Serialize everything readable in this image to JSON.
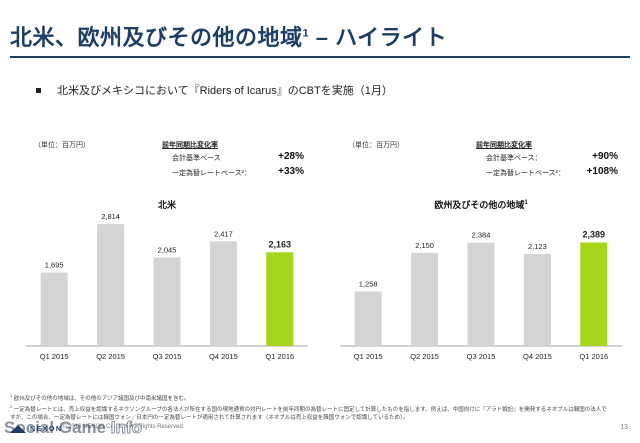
{
  "header": {
    "title": "北米、欧州及びその他の地域",
    "title_sup": "1",
    "title_suffix": "– ハイライト"
  },
  "bullet": {
    "text": "北米及びメキシコにおいて『Riders of Icarus』のCBTを実施（1月）"
  },
  "panels": [
    {
      "unit": "（単位：百万円）",
      "yoy_header": "前年同期比変化率",
      "yoy_rows": [
        {
          "label": "会計基準ベース",
          "value": "+28%"
        },
        {
          "label": "一定為替レートベース²：",
          "value": "+33%"
        }
      ],
      "chart_title": "北米",
      "chart_title_sup": ""
    },
    {
      "unit": "（単位：百万円）",
      "yoy_header": "前年同期比変化率",
      "yoy_rows": [
        {
          "label": "会計基準ベース：",
          "value": "+90%"
        },
        {
          "label": "一定為替レートベース²：",
          "value": "+108%"
        }
      ],
      "chart_title": "欧州及びその他の地域",
      "chart_title_sup": "1"
    }
  ],
  "chart_data": [
    {
      "type": "bar",
      "title": "北米",
      "categories": [
        "Q1 2015",
        "Q2 2015",
        "Q3 2015",
        "Q4 2015",
        "Q1 2016"
      ],
      "values": [
        1695,
        2814,
        2045,
        2417,
        2163
      ],
      "labels": [
        "1,695",
        "2,814",
        "2,045",
        "2,417",
        "2,163"
      ],
      "highlight_index": 4,
      "colors": {
        "bar": "#d4d4d4",
        "highlight": "#a5d61c"
      },
      "ylim": [
        0,
        3000
      ]
    },
    {
      "type": "bar",
      "title": "欧州及びその他の地域",
      "categories": [
        "Q1 2015",
        "Q2 2015",
        "Q3 2015",
        "Q4 2015",
        "Q1 2016"
      ],
      "values": [
        1258,
        2150,
        2384,
        2123,
        2389
      ],
      "labels": [
        "1,258",
        "2,150",
        "2,384",
        "2,123",
        "2,389"
      ],
      "highlight_index": 4,
      "colors": {
        "bar": "#d4d4d4",
        "highlight": "#a5d61c"
      },
      "ylim": [
        0,
        3000
      ]
    }
  ],
  "footnotes": [
    "欧州及びその他の地域は、その他のアジア諸国及び中南米諸国を含む。",
    "一定為替レートとは、売上収益を認識するネクソングループの各法人が所在する国の現地通貨の対円レートを前年同期の為替レートに固定して計算したものを指します。例えば、中国向けに『アラド戦記』を開発するネオプルは韓国の法人ですが、この場合、一定為替レートには韓国ウォン／日本円の一定為替レートが適用されて計算されます（ネオプルは売上収益を韓国ウォンで認識しているため）。"
  ],
  "footer": {
    "logo": "NEXON",
    "copyright": "© 2016 NEXON Co., Ltd. All Rights Reserved.",
    "page": "13",
    "watermark_a": "Social Game",
    "watermark_b": "Info"
  }
}
